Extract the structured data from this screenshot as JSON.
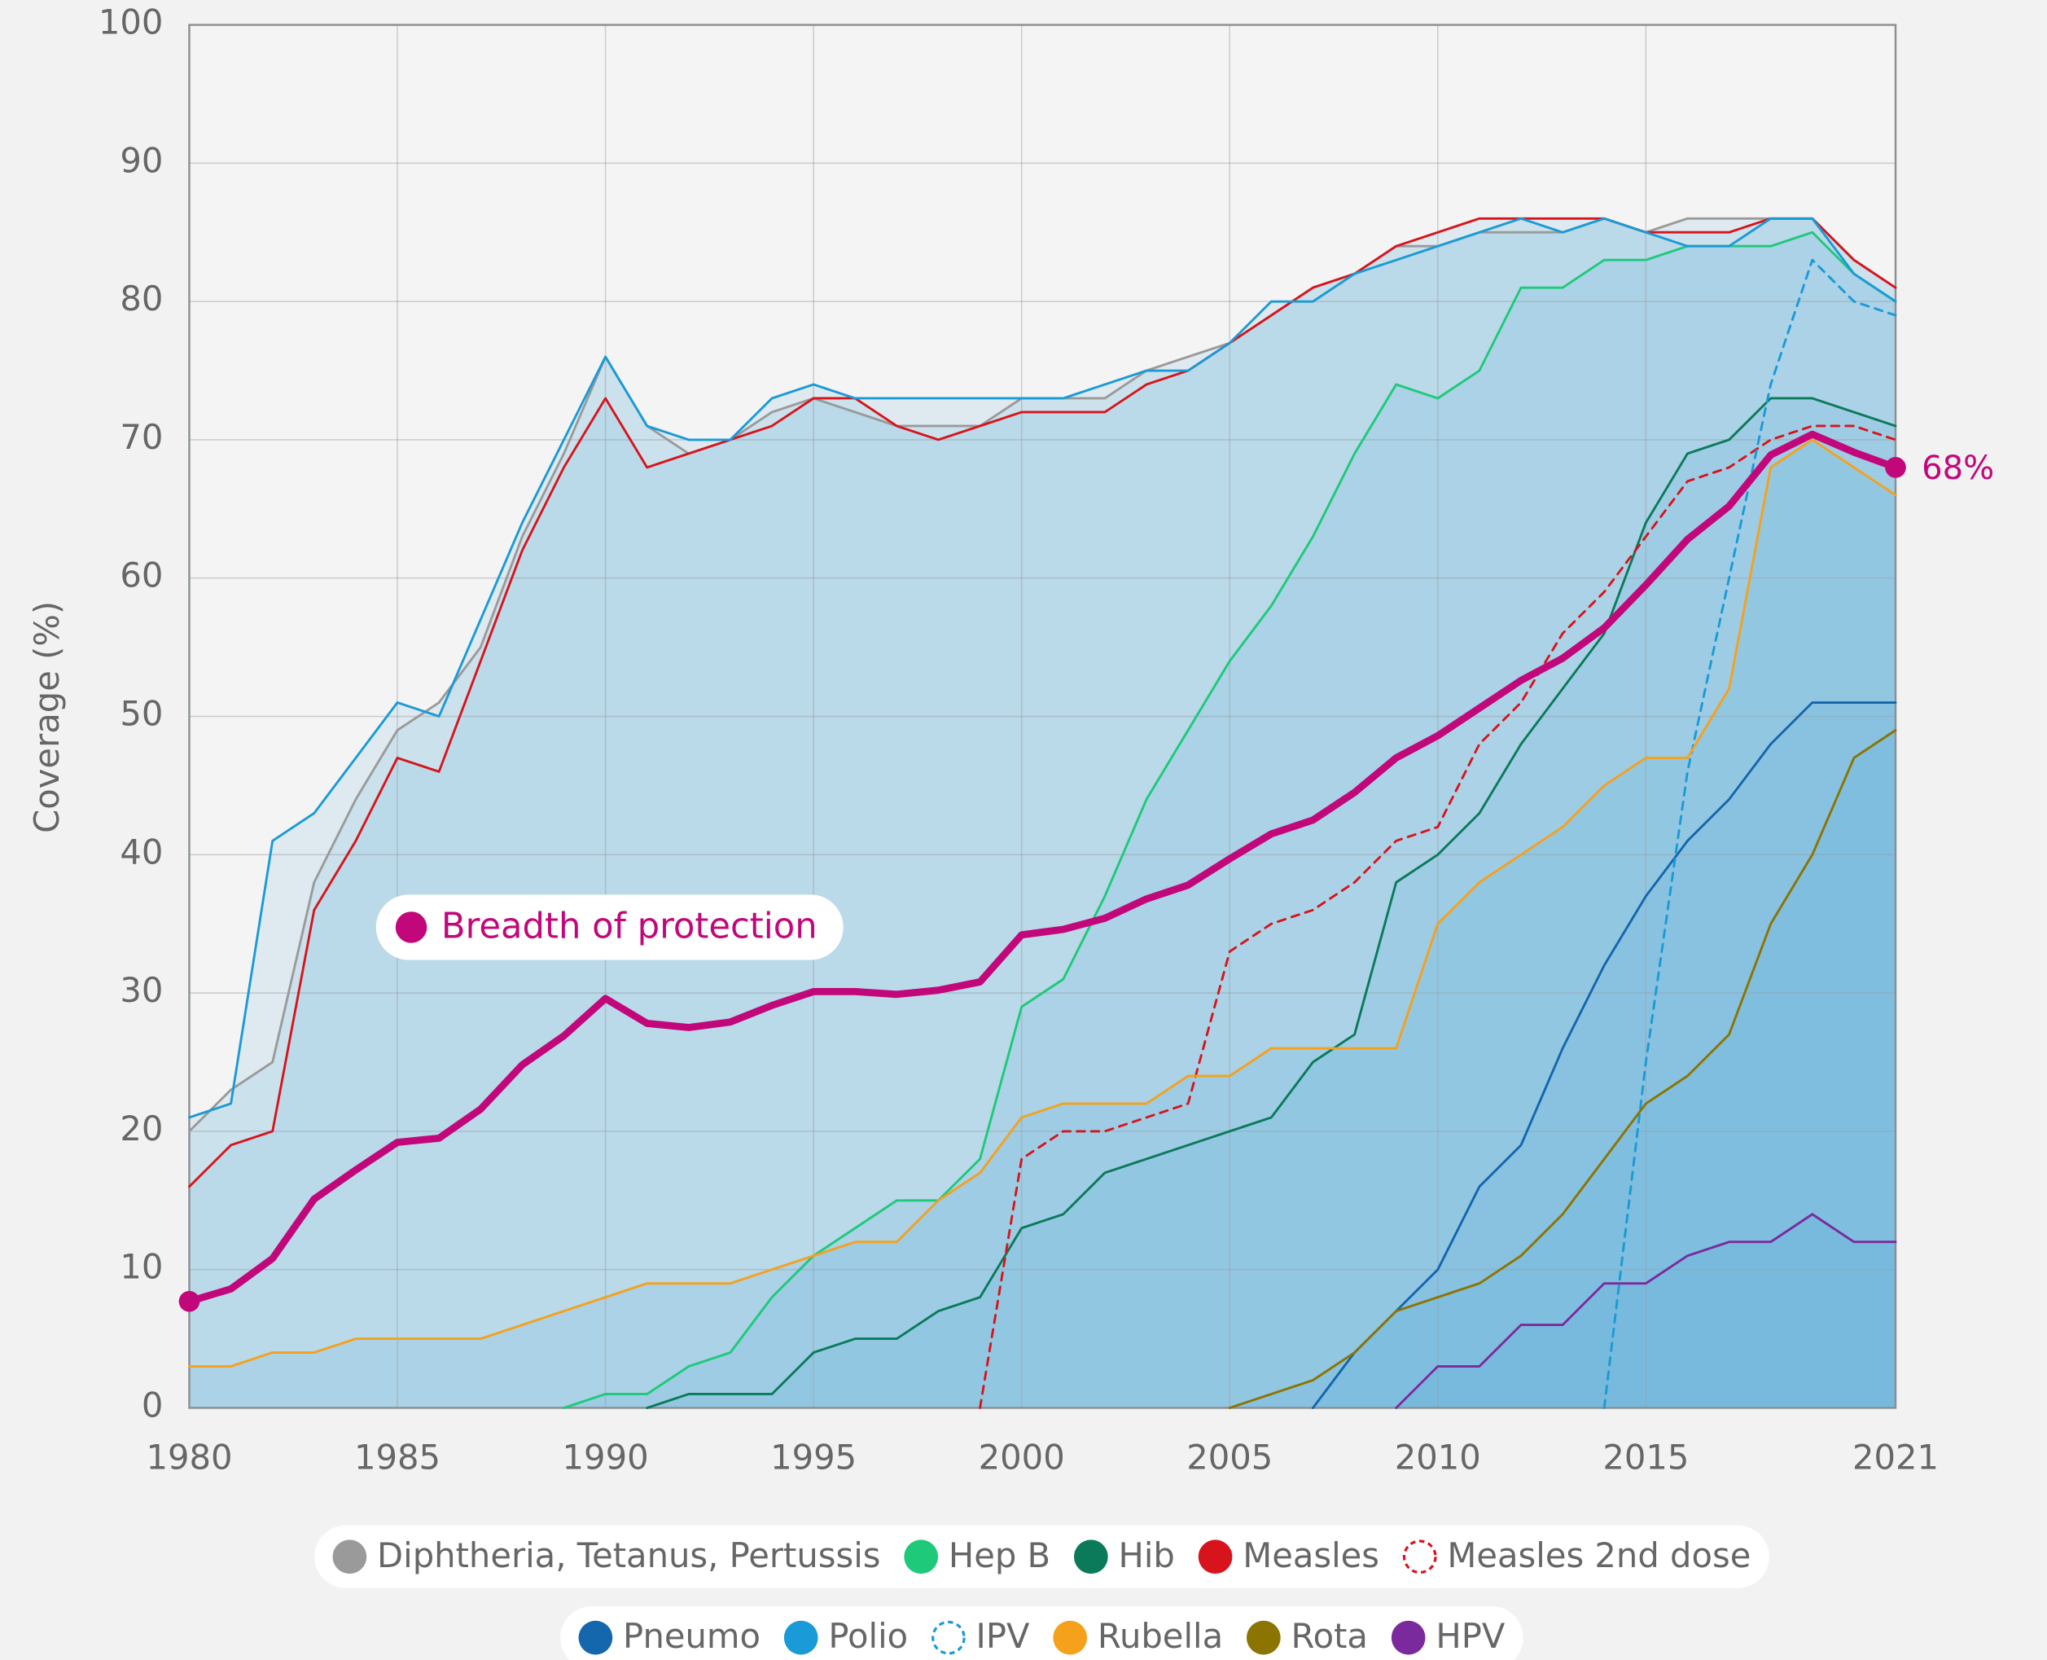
{
  "chart_data": {
    "type": "line",
    "y_label": "Coverage (%)",
    "x": [
      1980,
      1981,
      1982,
      1983,
      1984,
      1985,
      1986,
      1987,
      1988,
      1989,
      1990,
      1991,
      1992,
      1993,
      1994,
      1995,
      1996,
      1997,
      1998,
      1999,
      2000,
      2001,
      2002,
      2003,
      2004,
      2005,
      2006,
      2007,
      2008,
      2009,
      2010,
      2011,
      2012,
      2013,
      2014,
      2015,
      2016,
      2017,
      2018,
      2019,
      2020,
      2021
    ],
    "xlim": [
      1980,
      2021
    ],
    "xticks": [
      1980,
      1985,
      1990,
      1995,
      2000,
      2005,
      2010,
      2015,
      2021
    ],
    "ylim": [
      0,
      100
    ],
    "yticks": [
      0,
      10,
      20,
      30,
      40,
      50,
      60,
      70,
      80,
      90,
      100
    ],
    "grid": true,
    "area_fill": "#3fa6d8",
    "series": [
      {
        "name": "Diphtheria, Tetanus, Pertussis",
        "color": "#9a9a9a",
        "values": [
          20,
          23,
          25,
          38,
          44,
          49,
          51,
          55,
          63,
          69,
          76,
          71,
          69,
          70,
          72,
          73,
          72,
          71,
          71,
          71,
          73,
          73,
          73,
          75,
          76,
          77,
          79,
          81,
          82,
          84,
          84,
          85,
          85,
          85,
          86,
          85,
          86,
          86,
          86,
          86,
          83,
          81
        ]
      },
      {
        "name": "Hep B",
        "color": "#1ec97a",
        "values": [
          null,
          null,
          null,
          null,
          null,
          null,
          null,
          null,
          null,
          0,
          1,
          1,
          3,
          4,
          8,
          11,
          13,
          15,
          15,
          18,
          29,
          31,
          37,
          44,
          49,
          54,
          58,
          63,
          69,
          74,
          73,
          75,
          81,
          81,
          83,
          83,
          84,
          84,
          84,
          85,
          82,
          80
        ]
      },
      {
        "name": "Hib",
        "color": "#0a7a5a",
        "values": [
          null,
          null,
          null,
          null,
          null,
          null,
          null,
          null,
          null,
          null,
          null,
          0,
          1,
          1,
          1,
          4,
          5,
          5,
          7,
          8,
          13,
          14,
          17,
          18,
          19,
          20,
          21,
          25,
          27,
          38,
          40,
          43,
          48,
          52,
          56,
          64,
          69,
          70,
          73,
          73,
          72,
          71
        ]
      },
      {
        "name": "Measles",
        "color": "#d7141c",
        "values": [
          16,
          19,
          20,
          36,
          41,
          47,
          46,
          54,
          62,
          68,
          73,
          68,
          69,
          70,
          71,
          73,
          73,
          71,
          70,
          71,
          72,
          72,
          72,
          74,
          75,
          77,
          79,
          81,
          82,
          84,
          85,
          86,
          86,
          86,
          86,
          85,
          85,
          85,
          86,
          86,
          83,
          81
        ]
      },
      {
        "name": "Measles 2nd dose",
        "color": "#d7141c",
        "dashed": true,
        "values": [
          null,
          null,
          null,
          null,
          null,
          null,
          null,
          null,
          null,
          null,
          null,
          null,
          null,
          null,
          null,
          null,
          null,
          null,
          null,
          0,
          18,
          20,
          20,
          21,
          22,
          33,
          35,
          36,
          38,
          41,
          42,
          48,
          51,
          56,
          59,
          63,
          67,
          68,
          70,
          71,
          71,
          70
        ]
      },
      {
        "name": "Pneumo",
        "color": "#1466ad",
        "values": [
          null,
          null,
          null,
          null,
          null,
          null,
          null,
          null,
          null,
          null,
          null,
          null,
          null,
          null,
          null,
          null,
          null,
          null,
          null,
          null,
          null,
          null,
          null,
          null,
          null,
          null,
          null,
          0,
          4,
          7,
          10,
          16,
          19,
          26,
          32,
          37,
          41,
          44,
          48,
          51,
          51,
          51
        ]
      },
      {
        "name": "Polio",
        "color": "#1a9ad6",
        "values": [
          21,
          22,
          41,
          43,
          47,
          51,
          50,
          57,
          64,
          70,
          76,
          71,
          70,
          70,
          73,
          74,
          73,
          73,
          73,
          73,
          73,
          73,
          74,
          75,
          75,
          77,
          80,
          80,
          82,
          83,
          84,
          85,
          86,
          85,
          86,
          85,
          84,
          84,
          86,
          86,
          82,
          80
        ]
      },
      {
        "name": "IPV",
        "color": "#1a9ad6",
        "dashed": true,
        "values": [
          null,
          null,
          null,
          null,
          null,
          null,
          null,
          null,
          null,
          null,
          null,
          null,
          null,
          null,
          null,
          null,
          null,
          null,
          null,
          null,
          null,
          null,
          null,
          null,
          null,
          null,
          null,
          null,
          null,
          null,
          null,
          null,
          null,
          null,
          0,
          25,
          46,
          60,
          74,
          83,
          80,
          79
        ]
      },
      {
        "name": "Rubella",
        "color": "#f5a11c",
        "values": [
          3,
          3,
          4,
          4,
          5,
          5,
          5,
          5,
          6,
          7,
          8,
          9,
          9,
          9,
          10,
          11,
          12,
          12,
          15,
          17,
          21,
          22,
          22,
          22,
          24,
          24,
          26,
          26,
          26,
          26,
          35,
          38,
          40,
          42,
          45,
          47,
          47,
          52,
          68,
          70,
          68,
          66
        ]
      },
      {
        "name": "Rota",
        "color": "#8c7400",
        "values": [
          null,
          null,
          null,
          null,
          null,
          null,
          null,
          null,
          null,
          null,
          null,
          null,
          null,
          null,
          null,
          null,
          null,
          null,
          null,
          null,
          null,
          null,
          null,
          null,
          null,
          0,
          1,
          2,
          4,
          7,
          8,
          9,
          11,
          14,
          18,
          22,
          24,
          27,
          35,
          40,
          47,
          49
        ]
      },
      {
        "name": "HPV",
        "color": "#7b2a9e",
        "values": [
          null,
          null,
          null,
          null,
          null,
          null,
          null,
          null,
          null,
          null,
          null,
          null,
          null,
          null,
          null,
          null,
          null,
          null,
          null,
          null,
          null,
          null,
          null,
          null,
          null,
          null,
          null,
          null,
          null,
          0,
          3,
          3,
          6,
          6,
          9,
          9,
          11,
          12,
          12,
          14,
          12,
          12
        ]
      }
    ],
    "breadth": {
      "name": "Breadth of protection",
      "color": "#c2077a",
      "values": [
        7.7,
        8.6,
        10.8,
        15.1,
        17.2,
        19.2,
        19.5,
        21.6,
        24.8,
        26.9,
        29.6,
        27.8,
        27.5,
        27.9,
        29.1,
        30.1,
        30.1,
        29.9,
        30.2,
        30.8,
        34.2,
        34.6,
        35.4,
        36.8,
        37.8,
        39.7,
        41.5,
        42.5,
        44.5,
        47,
        48.6,
        50.6,
        52.6,
        54.2,
        56.4,
        59.5,
        62.8,
        65.2,
        68.9,
        70.4,
        69.1,
        68
      ],
      "value_labels": [
        null,
        null,
        null,
        null,
        null,
        null,
        null,
        null,
        null,
        null,
        null,
        null,
        null,
        null,
        null,
        null,
        null,
        null,
        null,
        null,
        null,
        null,
        null,
        null,
        null,
        null,
        null,
        null,
        null,
        null,
        null,
        null,
        null,
        null,
        null,
        null,
        null,
        null,
        null,
        null,
        null,
        "68%"
      ]
    }
  }
}
